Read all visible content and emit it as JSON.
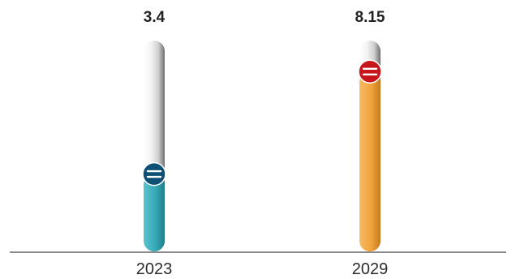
{
  "chart_data": {
    "type": "bar",
    "categories": [
      "2023",
      "2029"
    ],
    "values": [
      3.4,
      8.15
    ],
    "value_labels": [
      "3.4",
      "8.15"
    ],
    "ylim": [
      0,
      8.5
    ],
    "grid": false,
    "colors": {
      "bar_fills": [
        "#36a9b8",
        "#f2a43c"
      ],
      "knob_fills": [
        "#0e4f76",
        "#c8161d"
      ],
      "track": "#d9d9d9",
      "axis": "#444444"
    }
  }
}
